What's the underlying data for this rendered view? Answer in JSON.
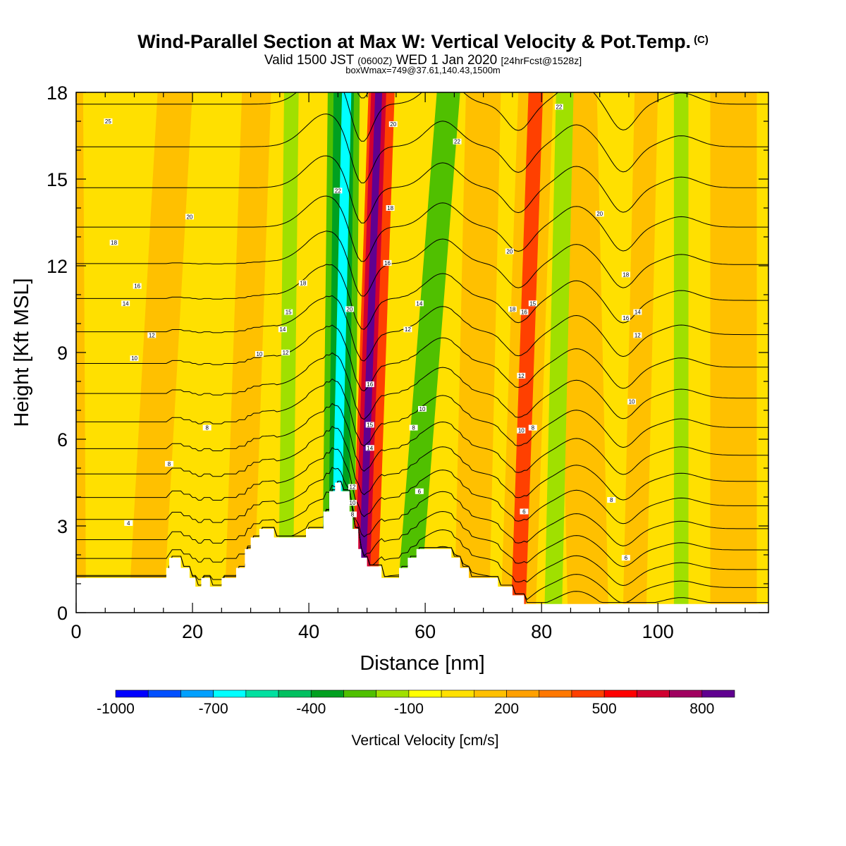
{
  "title": {
    "main": "Wind-Parallel Section at Max W: Vertical Velocity & Pot.Temp.",
    "main_mark": "(C)",
    "line2_a": "Valid 1500 JST",
    "line2_b": "(0600Z)",
    "line2_c": "WED 1 Jan 2020",
    "line2_d": "[24hrFcst@1528z]",
    "line3": "boxWmax=749@37.61,140.43,1500m"
  },
  "chart_data": {
    "type": "heatmap",
    "xlabel": "Distance [nm]",
    "ylabel": "Height [Kft MSL]",
    "xlim": [
      0,
      119
    ],
    "ylim": [
      0,
      18
    ],
    "x_ticks": [
      0,
      20,
      40,
      60,
      80,
      100
    ],
    "y_ticks": [
      0,
      3,
      6,
      9,
      12,
      15,
      18
    ],
    "colorbar": {
      "label": "Vertical Velocity [cm/s]",
      "tick_labels": [
        "-1000",
        "-700",
        "-400",
        "-100",
        "200",
        "500",
        "800"
      ],
      "tick_values": [
        -1000,
        -700,
        -400,
        -100,
        200,
        500,
        800
      ],
      "range": [
        -1000,
        900
      ],
      "bins": [
        {
          "from": -1000,
          "to": -900,
          "color": "#0000ff"
        },
        {
          "from": -900,
          "to": -800,
          "color": "#0050ff"
        },
        {
          "from": -800,
          "to": -700,
          "color": "#00a0ff"
        },
        {
          "from": -700,
          "to": -600,
          "color": "#00ffff"
        },
        {
          "from": -600,
          "to": -500,
          "color": "#00e0a0"
        },
        {
          "from": -500,
          "to": -400,
          "color": "#00c060"
        },
        {
          "from": -400,
          "to": -300,
          "color": "#00a020"
        },
        {
          "from": -300,
          "to": -200,
          "color": "#50c000"
        },
        {
          "from": -200,
          "to": -100,
          "color": "#a0e000"
        },
        {
          "from": -100,
          "to": 0,
          "color": "#ffff00"
        },
        {
          "from": 0,
          "to": 100,
          "color": "#ffe000"
        },
        {
          "from": 100,
          "to": 200,
          "color": "#ffc000"
        },
        {
          "from": 200,
          "to": 300,
          "color": "#ffa000"
        },
        {
          "from": 300,
          "to": 400,
          "color": "#ff7800"
        },
        {
          "from": 400,
          "to": 500,
          "color": "#ff4000"
        },
        {
          "from": 500,
          "to": 600,
          "color": "#ff0000"
        },
        {
          "from": 600,
          "to": 700,
          "color": "#d00030"
        },
        {
          "from": 700,
          "to": 800,
          "color": "#a00060"
        },
        {
          "from": 800,
          "to": 900,
          "color": "#600090"
        }
      ]
    },
    "w_bands": [
      {
        "x_top": 52,
        "x_bot": 49,
        "width": 1.2,
        "w": 850
      },
      {
        "x_top": 52,
        "x_bot": 49,
        "width": 2.6,
        "w": 650
      },
      {
        "x_top": 52.5,
        "x_bot": 49.5,
        "width": 4.5,
        "w": 450
      },
      {
        "x_top": 46.5,
        "x_bot": 44.5,
        "width": 1.6,
        "w": -650
      },
      {
        "x_top": 46,
        "x_bot": 45,
        "width": 3.5,
        "w": -400
      },
      {
        "x_top": 46,
        "x_bot": 45,
        "width": 5.5,
        "w": -250
      },
      {
        "x_top": 64,
        "x_bot": 57,
        "width": 4,
        "w": -250
      },
      {
        "x_top": 79,
        "x_bot": 76,
        "width": 2.5,
        "w": 420
      },
      {
        "x_top": 79,
        "x_bot": 76,
        "width": 6,
        "w": 180
      },
      {
        "x_top": 84,
        "x_bot": 82,
        "width": 3,
        "w": -150
      },
      {
        "x_top": 37,
        "x_bot": 36,
        "width": 2.5,
        "w": -150
      },
      {
        "x_top": 98,
        "x_bot": 96,
        "width": 4,
        "w": 150
      },
      {
        "x_top": 104,
        "x_bot": 104,
        "width": 2.5,
        "w": -120
      }
    ],
    "terrain": [
      [
        0,
        1.2
      ],
      [
        15.5,
        1.2
      ],
      [
        15.5,
        1.55
      ],
      [
        16,
        1.55
      ],
      [
        16,
        1.9
      ],
      [
        18,
        1.9
      ],
      [
        18,
        1.55
      ],
      [
        19.5,
        1.55
      ],
      [
        19.5,
        1.2
      ],
      [
        20.5,
        1.2
      ],
      [
        20.5,
        0.9
      ],
      [
        21.5,
        0.9
      ],
      [
        21.5,
        1.2
      ],
      [
        23,
        1.2
      ],
      [
        23,
        0.9
      ],
      [
        25,
        0.9
      ],
      [
        25,
        1.2
      ],
      [
        27.5,
        1.2
      ],
      [
        27.5,
        1.55
      ],
      [
        29,
        1.55
      ],
      [
        29,
        2.2
      ],
      [
        30,
        2.2
      ],
      [
        30,
        2.6
      ],
      [
        31.5,
        2.6
      ],
      [
        31.5,
        2.9
      ],
      [
        34,
        2.9
      ],
      [
        34,
        2.6
      ],
      [
        39.5,
        2.6
      ],
      [
        39.5,
        2.9
      ],
      [
        42.5,
        2.9
      ],
      [
        42.5,
        3.5
      ],
      [
        43.5,
        3.5
      ],
      [
        43.5,
        4.2
      ],
      [
        44.5,
        4.2
      ],
      [
        44.5,
        4.5
      ],
      [
        45.5,
        4.5
      ],
      [
        45.5,
        4.2
      ],
      [
        47,
        4.2
      ],
      [
        47,
        3.5
      ],
      [
        47.5,
        3.5
      ],
      [
        47.5,
        2.9
      ],
      [
        48.5,
        2.9
      ],
      [
        48.5,
        2.2
      ],
      [
        49,
        2.2
      ],
      [
        49,
        1.9
      ],
      [
        50,
        1.9
      ],
      [
        50,
        1.6
      ],
      [
        52.5,
        1.6
      ],
      [
        52.5,
        1.2
      ],
      [
        55.5,
        1.2
      ],
      [
        55.5,
        1.55
      ],
      [
        57,
        1.55
      ],
      [
        57,
        1.9
      ],
      [
        58.5,
        1.9
      ],
      [
        58.5,
        2.2
      ],
      [
        64.5,
        2.2
      ],
      [
        64.5,
        1.9
      ],
      [
        66,
        1.9
      ],
      [
        66,
        1.55
      ],
      [
        67.5,
        1.55
      ],
      [
        67.5,
        1.2
      ],
      [
        72.5,
        1.2
      ],
      [
        72.5,
        0.9
      ],
      [
        75,
        0.9
      ],
      [
        75,
        0.6
      ],
      [
        77,
        0.6
      ],
      [
        77,
        0.3
      ],
      [
        119,
        0.3
      ]
    ],
    "theta_levels": [
      4,
      5,
      6,
      7,
      8,
      9,
      10,
      11,
      12,
      13,
      14,
      15,
      16,
      17,
      18,
      19,
      20,
      21,
      22,
      23,
      24,
      25,
      26,
      27
    ],
    "contour_labels": [
      {
        "x": 9,
        "y": 3.1,
        "text": "4"
      },
      {
        "x": 16,
        "y": 5.15,
        "text": "8"
      },
      {
        "x": 22.5,
        "y": 6.4,
        "text": "8"
      },
      {
        "x": 10,
        "y": 8.8,
        "text": "10"
      },
      {
        "x": 13,
        "y": 9.6,
        "text": "12"
      },
      {
        "x": 8.5,
        "y": 10.7,
        "text": "14"
      },
      {
        "x": 10.5,
        "y": 11.3,
        "text": "16"
      },
      {
        "x": 6.5,
        "y": 12.8,
        "text": "18"
      },
      {
        "x": 19.5,
        "y": 13.7,
        "text": "20"
      },
      {
        "x": 5.5,
        "y": 17,
        "text": "25"
      },
      {
        "x": 31.5,
        "y": 8.95,
        "text": "10"
      },
      {
        "x": 36,
        "y": 9.0,
        "text": "12"
      },
      {
        "x": 35.5,
        "y": 9.8,
        "text": "14"
      },
      {
        "x": 36.5,
        "y": 10.4,
        "text": "15"
      },
      {
        "x": 39,
        "y": 11.4,
        "text": "18"
      },
      {
        "x": 45,
        "y": 14.6,
        "text": "22"
      },
      {
        "x": 47,
        "y": 10.5,
        "text": "20"
      },
      {
        "x": 54.5,
        "y": 16.9,
        "text": "20"
      },
      {
        "x": 54,
        "y": 14.0,
        "text": "18"
      },
      {
        "x": 53.5,
        "y": 12.1,
        "text": "16"
      },
      {
        "x": 50.5,
        "y": 7.9,
        "text": "16"
      },
      {
        "x": 50.5,
        "y": 6.5,
        "text": "15"
      },
      {
        "x": 50.5,
        "y": 5.7,
        "text": "14"
      },
      {
        "x": 47.5,
        "y": 4.35,
        "text": "12"
      },
      {
        "x": 47.5,
        "y": 3.8,
        "text": "10"
      },
      {
        "x": 47.5,
        "y": 3.4,
        "text": "8"
      },
      {
        "x": 59,
        "y": 10.7,
        "text": "14"
      },
      {
        "x": 57,
        "y": 9.8,
        "text": "12"
      },
      {
        "x": 59.5,
        "y": 7.05,
        "text": "10"
      },
      {
        "x": 58,
        "y": 6.4,
        "text": "8"
      },
      {
        "x": 59,
        "y": 4.2,
        "text": "6"
      },
      {
        "x": 65.5,
        "y": 16.3,
        "text": "22"
      },
      {
        "x": 74.5,
        "y": 12.5,
        "text": "20"
      },
      {
        "x": 75,
        "y": 10.5,
        "text": "18"
      },
      {
        "x": 77,
        "y": 10.4,
        "text": "16"
      },
      {
        "x": 78.5,
        "y": 10.7,
        "text": "15"
      },
      {
        "x": 76.5,
        "y": 8.2,
        "text": "12"
      },
      {
        "x": 76.5,
        "y": 6.3,
        "text": "10"
      },
      {
        "x": 78.5,
        "y": 6.4,
        "text": "8"
      },
      {
        "x": 77,
        "y": 3.5,
        "text": "6"
      },
      {
        "x": 83,
        "y": 17.5,
        "text": "22"
      },
      {
        "x": 90,
        "y": 13.8,
        "text": "20"
      },
      {
        "x": 94.5,
        "y": 11.7,
        "text": "18"
      },
      {
        "x": 94.5,
        "y": 10.2,
        "text": "16"
      },
      {
        "x": 96.5,
        "y": 10.4,
        "text": "14"
      },
      {
        "x": 96.5,
        "y": 9.6,
        "text": "12"
      },
      {
        "x": 95.5,
        "y": 7.3,
        "text": "10"
      },
      {
        "x": 92,
        "y": 3.9,
        "text": "8"
      },
      {
        "x": 94.5,
        "y": 1.9,
        "text": "6"
      }
    ]
  }
}
